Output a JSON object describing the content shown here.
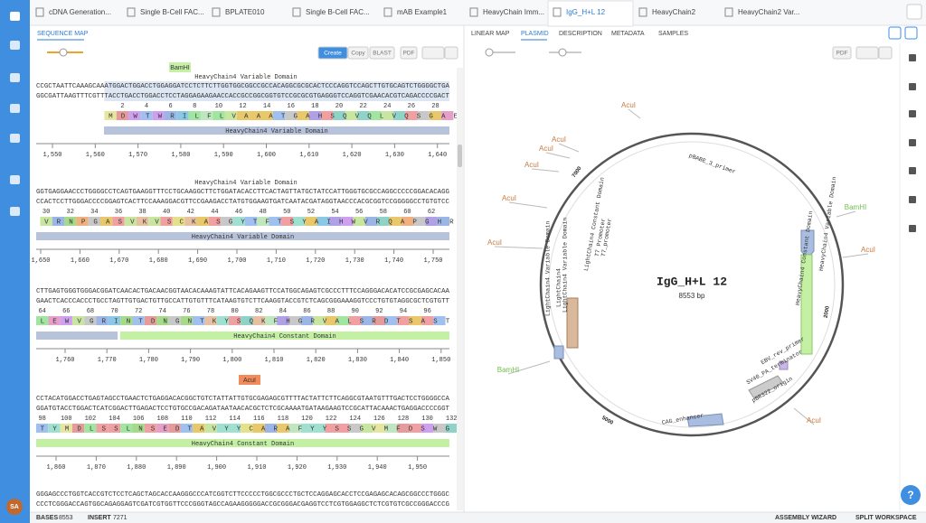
{
  "sidebar": {
    "avatar": "SA"
  },
  "tabs": [
    "cDNA Generation...",
    "Single B-Cell FAC...",
    "BPLATE010",
    "Single B-Cell FAC...",
    "mAB Example1",
    "HeavyChain Imm...",
    "IgG_H+L 12",
    "HeavyChain2",
    "HeavyChain2 Var..."
  ],
  "sequence_map": {
    "title": "SEQUENCE MAP",
    "buttons": [
      "Create",
      "Copy",
      "BLAST",
      "PDF"
    ],
    "blocks": [
      {
        "enzyme": "BamHI",
        "feature_label": "HeavyChain4 Variable Domain",
        "top": "CCGCTAATTCAAAGCAAATGGACTGGACCTGGAGGATCCTCTTCTTGGTGGCGGCCGCCACAGGCGCGCACTCCCAGGTCCAGCTTGTGCAGTCTGGGGCTGA",
        "bottom": "GGCGATTAAGTTTCGTTTACCTGACCTGGACCTCCTAGGAGAAGAACCACCGCCGGCGGTGTCCGCGCGTGAGGGTCCAGGTCGAACACGTCAGACCCCGACT",
        "aa_numbers": [
          2,
          4,
          6,
          8,
          10,
          12,
          14,
          16,
          18,
          20,
          22,
          24,
          26,
          28
        ],
        "aa": "MDWTWRILFLVAAATGAHSQVQLVQSGAE",
        "bars": [
          "HeavyChain4 Variable Domain"
        ],
        "ruler": [
          "1,550",
          "1,560",
          "1,570",
          "1,580",
          "1,590",
          "1,600",
          "1,610",
          "1,620",
          "1,630",
          "1,640"
        ]
      },
      {
        "feature_label": "HeavyChain4 Variable Domain",
        "top": "GGTGAGGAACCCTGGGGCCTCAGTGAAGGTTTCCTGCAAGGCTTCTGGATACACCTTCACTAGTTATGCTATCCATTGGGTGCGCCAGGCCCCCGGACACAGG",
        "bottom": "CCACTCCTTGGGACCCCGGAGTCACTTCCAAAGGACGTTCCGAAGACCTATGTGGAAGTGATCAATACGATAGGTAACCCACGCGGTCCGGGGGCCTGTGTCC",
        "aa_numbers": [
          30,
          32,
          34,
          36,
          38,
          40,
          42,
          44,
          46,
          48,
          50,
          52,
          54,
          56,
          58,
          60,
          62
        ],
        "aa": "VRNPGASVKVSCKASGYTFTSYAIHWVRQAPGHR",
        "bars": [
          "HeavyChain4 Variable Domain"
        ],
        "ruler": [
          "1,650",
          "1,660",
          "1,670",
          "1,680",
          "1,690",
          "1,700",
          "1,710",
          "1,720",
          "1,730",
          "1,740",
          "1,750"
        ]
      },
      {
        "top": "CTTGAGTGGGTGGGACGGATCAACACTGACAACGGTAACACAAAGTATTCACAGAAGTTCCATGGCAGAGTCGCCCTTTCCAGGGACACATCCGCGAGCACAA",
        "bottom": "GAACTCACCCACCCTGCCTAGTTGTGACTGTTGCCATTGTGTTTCATAAGTGTCTTCAAGGTACCGTCTCAGCGGGAAAGGTCCCTGTGTAGGCGCTCGTGTT",
        "aa_numbers": [
          64,
          66,
          68,
          70,
          72,
          74,
          76,
          78,
          80,
          82,
          84,
          86,
          88,
          90,
          92,
          94,
          96
        ],
        "aa": "LEWVGRINTDNGNTKYSQKFHGRVALSRDTSAST",
        "bars": [
          "HeavyChain4 Constant Domain"
        ],
        "ruler": [
          "1,760",
          "1,770",
          "1,780",
          "1,790",
          "1,800",
          "1,810",
          "1,820",
          "1,830",
          "1,840",
          "1,850"
        ]
      },
      {
        "enzyme": "AcuI",
        "top": "CCTACATGGACCTGAGTAGCCTGAACTCTGAGGACACGGCTGTCTATTATTGTGCGAGAGCGTTTTACTATTCTTCAGGCGTAATGTTTGACTCCTGGGGCCA",
        "bottom": "GGATGTACCTGGACTCATCGGACTTGAGACTCCTGTGCCGACAGATAATAACACGCTCTCGCAAAATGATAAGAAGTCCGCATTACAAACTGAGGACCCCGGT",
        "aa_numbers": [
          98,
          100,
          102,
          104,
          106,
          108,
          110,
          112,
          114,
          116,
          118,
          120,
          122,
          124,
          126,
          128,
          130,
          132
        ],
        "aa": "TYMDLSSLNSEDTAVYYCARAFYYSSGVMFDSWGQ",
        "bars": [
          "HeavyChain4 Constant Domain"
        ],
        "ruler": [
          "1,860",
          "1,870",
          "1,880",
          "1,890",
          "1,900",
          "1,910",
          "1,920",
          "1,930",
          "1,940",
          "1,950"
        ]
      },
      {
        "top": "GGGAGCCCTGGTCACCGTCTCCTCAGCTAGCACCAAGGGCCCATCGGTCTTCCCCCTGGCGCCCTGCTCCAGGAGCACCTCCGAGAGCACAGCGGCCCTGGGC",
        "bottom": "CCCTCGGGACCAGTGGCAGAGGAGTCGATCGTGGTTCCCGGGTAGCCAGAAGGGGGACCGCGGGACGAGGTCCTCGTGGAGGCTCTCGTGTCGCCGGGACCCG"
      }
    ]
  },
  "plasmid_view": {
    "tabs": [
      "LINEAR MAP",
      "PLASMID",
      "DESCRIPTION",
      "METADATA",
      "SAMPLES"
    ],
    "pdf": "PDF",
    "name": "IgG_H+L 12",
    "length": "8553 bp",
    "enzymes": [
      "AcuI",
      "AcuI",
      "AcuI",
      "AcuI",
      "AcuI",
      "AcuI",
      "BamHI",
      "AcuI",
      "BamHI",
      "AcuI"
    ],
    "features": [
      "pBABE_3_primer",
      "LightChain4 Constant Domain",
      "T7 Promoter",
      "T7_promoter",
      "LightChain4 Variable Domain",
      "LightChain4",
      "LightChain4 Variable Domain",
      "HeavyChain4 Constant Domain",
      "HeavyChain4 Variable Domain",
      "EBV_rev_primer",
      "SV40_PA_terminator",
      "pBR322_origin",
      "CAG_enhancer"
    ],
    "ticks": [
      "7000",
      "2000",
      "5000"
    ]
  },
  "status": {
    "bases_label": "BASES",
    "bases": 8553,
    "insert_label": "INSERT",
    "insert": 7271,
    "assembly": "ASSEMBLY WIZARD",
    "split": "SPLIT WORKSPACE"
  },
  "help": "?"
}
